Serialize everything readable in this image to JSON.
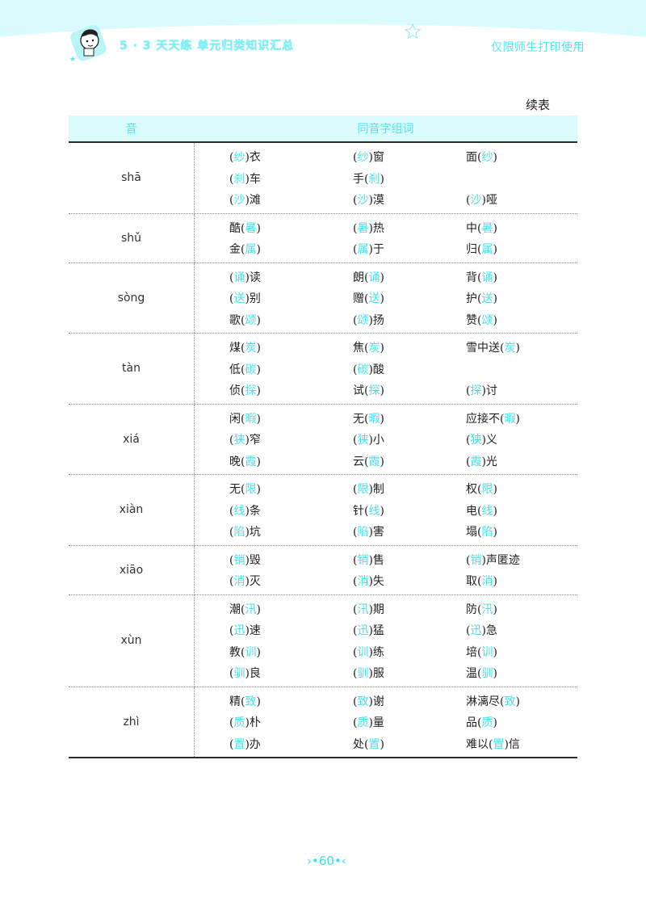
{
  "header": {
    "brand": "5 · 3 天天练  单元归类知识汇总",
    "restriction": "仅限师生打印使用"
  },
  "continuation_label": "续表",
  "table": {
    "columns": [
      "音",
      "同音字组词"
    ],
    "groups": [
      {
        "pinyin": "shā",
        "rows": [
          [
            {
              "pre": "(",
              "hl": "纱",
              "post": ")衣"
            },
            {
              "pre": "(",
              "hl": "纱",
              "post": ")窗"
            },
            {
              "pre": "面(",
              "hl": "纱",
              "post": ")"
            }
          ],
          [
            {
              "pre": "(",
              "hl": "刹",
              "post": ")车"
            },
            {
              "pre": "手(",
              "hl": "刹",
              "post": ")"
            },
            null
          ],
          [
            {
              "pre": "(",
              "hl": "沙",
              "post": ")滩"
            },
            {
              "pre": "(",
              "hl": "沙",
              "post": ")漠"
            },
            {
              "pre": "(",
              "hl": "沙",
              "post": ")哑"
            }
          ]
        ]
      },
      {
        "pinyin": "shǔ",
        "rows": [
          [
            {
              "pre": "酷(",
              "hl": "暑",
              "post": ")"
            },
            {
              "pre": "(",
              "hl": "暑",
              "post": ")热"
            },
            {
              "pre": "中(",
              "hl": "暑",
              "post": ")"
            }
          ],
          [
            {
              "pre": "金(",
              "hl": "属",
              "post": ")"
            },
            {
              "pre": "(",
              "hl": "属",
              "post": ")于"
            },
            {
              "pre": "归(",
              "hl": "属",
              "post": ")"
            }
          ]
        ]
      },
      {
        "pinyin": "sòng",
        "rows": [
          [
            {
              "pre": "(",
              "hl": "诵",
              "post": ")读"
            },
            {
              "pre": "朗(",
              "hl": "诵",
              "post": ")"
            },
            {
              "pre": "背(",
              "hl": "诵",
              "post": ")"
            }
          ],
          [
            {
              "pre": "(",
              "hl": "送",
              "post": ")别"
            },
            {
              "pre": "赠(",
              "hl": "送",
              "post": ")"
            },
            {
              "pre": "护(",
              "hl": "送",
              "post": ")"
            }
          ],
          [
            {
              "pre": "歌(",
              "hl": "颂",
              "post": ")"
            },
            {
              "pre": "(",
              "hl": "颂",
              "post": ")扬"
            },
            {
              "pre": "赞(",
              "hl": "颂",
              "post": ")"
            }
          ]
        ]
      },
      {
        "pinyin": "tàn",
        "rows": [
          [
            {
              "pre": "煤(",
              "hl": "炭",
              "post": ")"
            },
            {
              "pre": "焦(",
              "hl": "炭",
              "post": ")"
            },
            {
              "pre": "雪中送(",
              "hl": "炭",
              "post": ")"
            }
          ],
          [
            {
              "pre": "低(",
              "hl": "碳",
              "post": ")"
            },
            {
              "pre": "(",
              "hl": "碳",
              "post": ")酸"
            },
            null
          ],
          [
            {
              "pre": "侦(",
              "hl": "探",
              "post": ")"
            },
            {
              "pre": "试(",
              "hl": "探",
              "post": ")"
            },
            {
              "pre": "(",
              "hl": "探",
              "post": ")讨"
            }
          ]
        ]
      },
      {
        "pinyin": "xiá",
        "rows": [
          [
            {
              "pre": "闲(",
              "hl": "暇",
              "post": ")"
            },
            {
              "pre": "无(",
              "hl": "暇",
              "post": ")"
            },
            {
              "pre": "应接不(",
              "hl": "暇",
              "post": ")"
            }
          ],
          [
            {
              "pre": "(",
              "hl": "狭",
              "post": ")窄"
            },
            {
              "pre": "(",
              "hl": "狭",
              "post": ")小"
            },
            {
              "pre": "(",
              "hl": "狭",
              "post": ")义"
            }
          ],
          [
            {
              "pre": "晚(",
              "hl": "霞",
              "post": ")"
            },
            {
              "pre": "云(",
              "hl": "霞",
              "post": ")"
            },
            {
              "pre": "(",
              "hl": "霞",
              "post": ")光"
            }
          ]
        ]
      },
      {
        "pinyin": "xiàn",
        "rows": [
          [
            {
              "pre": "无(",
              "hl": "限",
              "post": ")"
            },
            {
              "pre": "(",
              "hl": "限",
              "post": ")制"
            },
            {
              "pre": "权(",
              "hl": "限",
              "post": ")"
            }
          ],
          [
            {
              "pre": "(",
              "hl": "线",
              "post": ")条"
            },
            {
              "pre": "针(",
              "hl": "线",
              "post": ")"
            },
            {
              "pre": "电(",
              "hl": "线",
              "post": ")"
            }
          ],
          [
            {
              "pre": "(",
              "hl": "陷",
              "post": ")坑"
            },
            {
              "pre": "(",
              "hl": "陷",
              "post": ")害"
            },
            {
              "pre": "塌(",
              "hl": "陷",
              "post": ")"
            }
          ]
        ]
      },
      {
        "pinyin": "xiāo",
        "rows": [
          [
            {
              "pre": "(",
              "hl": "销",
              "post": ")毁"
            },
            {
              "pre": "(",
              "hl": "销",
              "post": ")售"
            },
            {
              "pre": "(",
              "hl": "销",
              "post": ")声匿迹"
            }
          ],
          [
            {
              "pre": "(",
              "hl": "消",
              "post": ")灭"
            },
            {
              "pre": "(",
              "hl": "消",
              "post": ")失"
            },
            {
              "pre": "取(",
              "hl": "消",
              "post": ")"
            }
          ]
        ]
      },
      {
        "pinyin": "xùn",
        "rows": [
          [
            {
              "pre": "潮(",
              "hl": "汛",
              "post": ")"
            },
            {
              "pre": "(",
              "hl": "汛",
              "post": ")期"
            },
            {
              "pre": "防(",
              "hl": "汛",
              "post": ")"
            }
          ],
          [
            {
              "pre": "(",
              "hl": "迅",
              "post": ")速"
            },
            {
              "pre": "(",
              "hl": "迅",
              "post": ")猛"
            },
            {
              "pre": "(",
              "hl": "迅",
              "post": ")急"
            }
          ],
          [
            {
              "pre": "教(",
              "hl": "训",
              "post": ")"
            },
            {
              "pre": "(",
              "hl": "训",
              "post": ")练"
            },
            {
              "pre": "培(",
              "hl": "训",
              "post": ")"
            }
          ],
          [
            {
              "pre": "(",
              "hl": "驯",
              "post": ")良"
            },
            {
              "pre": "(",
              "hl": "驯",
              "post": ")服"
            },
            {
              "pre": "温(",
              "hl": "驯",
              "post": ")"
            }
          ]
        ]
      },
      {
        "pinyin": "zhì",
        "rows": [
          [
            {
              "pre": "精(",
              "hl": "致",
              "post": ")"
            },
            {
              "pre": "(",
              "hl": "致",
              "post": ")谢"
            },
            {
              "pre": "淋漓尽(",
              "hl": "致",
              "post": ")"
            }
          ],
          [
            {
              "pre": "(",
              "hl": "质",
              "post": ")朴"
            },
            {
              "pre": "(",
              "hl": "质",
              "post": ")量"
            },
            {
              "pre": "品(",
              "hl": "质",
              "post": ")"
            }
          ],
          [
            {
              "pre": "(",
              "hl": "置",
              "post": ")办"
            },
            {
              "pre": "处(",
              "hl": "置",
              "post": ")"
            },
            {
              "pre": "难以(",
              "hl": "置",
              "post": ")信"
            }
          ]
        ]
      }
    ]
  },
  "footer": {
    "page_number": "60"
  },
  "colors": {
    "accent": "#4adfea",
    "header_bg": "#d9fbfd",
    "text": "#222222"
  }
}
